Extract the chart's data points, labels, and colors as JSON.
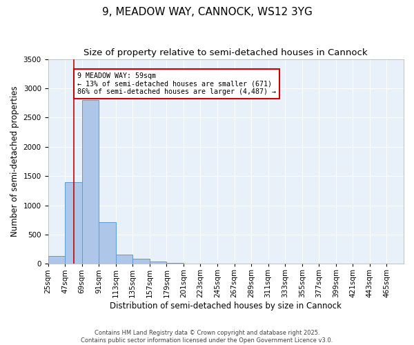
{
  "title": "9, MEADOW WAY, CANNOCK, WS12 3YG",
  "subtitle": "Size of property relative to semi-detached houses in Cannock",
  "xlabel": "Distribution of semi-detached houses by size in Cannock",
  "ylabel": "Number of semi-detached properties",
  "bins": [
    "25sqm",
    "47sqm",
    "69sqm",
    "91sqm",
    "113sqm",
    "135sqm",
    "157sqm",
    "179sqm",
    "201sqm",
    "223sqm",
    "245sqm",
    "267sqm",
    "289sqm",
    "311sqm",
    "333sqm",
    "355sqm",
    "377sqm",
    "399sqm",
    "421sqm",
    "443sqm",
    "465sqm"
  ],
  "bin_edges": [
    25,
    47,
    69,
    91,
    113,
    135,
    157,
    179,
    201,
    223,
    245,
    267,
    289,
    311,
    333,
    355,
    377,
    399,
    421,
    443,
    465
  ],
  "values": [
    130,
    1390,
    2800,
    710,
    155,
    90,
    40,
    20,
    0,
    0,
    0,
    0,
    0,
    0,
    0,
    0,
    0,
    0,
    0,
    0
  ],
  "bar_color": "#aec6e8",
  "bar_edge_color": "#5b9bd5",
  "red_line_x": 59,
  "annotation_text": "9 MEADOW WAY: 59sqm\n← 13% of semi-detached houses are smaller (671)\n86% of semi-detached houses are larger (4,487) →",
  "annotation_box_color": "#ffffff",
  "annotation_box_edge_color": "#cc0000",
  "red_line_color": "#cc0000",
  "ylim": [
    0,
    3500
  ],
  "yticks": [
    0,
    500,
    1000,
    1500,
    2000,
    2500,
    3000,
    3500
  ],
  "bg_color": "#e8f0fa",
  "grid_color": "#ffffff",
  "footer_text": "Contains HM Land Registry data © Crown copyright and database right 2025.\nContains public sector information licensed under the Open Government Licence v3.0.",
  "title_fontsize": 11,
  "subtitle_fontsize": 9.5,
  "axis_label_fontsize": 8.5,
  "tick_fontsize": 7.5
}
